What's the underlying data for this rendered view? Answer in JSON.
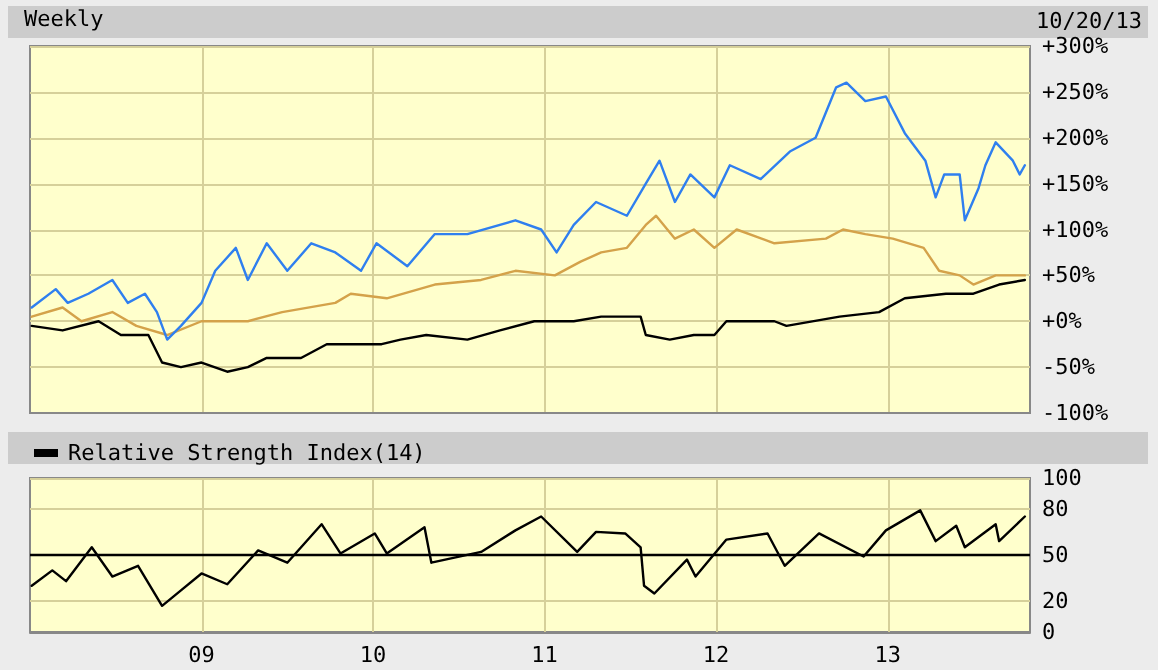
{
  "chart_data": [
    {
      "type": "line",
      "title": "Weekly",
      "annotations": [
        "10/20/13"
      ],
      "xlim": [
        2008.0,
        2013.83
      ],
      "xticks": [
        2009,
        2010,
        2011,
        2012,
        2013
      ],
      "ylim": [
        -100,
        300
      ],
      "yticks": [
        {
          "value": -100,
          "label": "-100%"
        },
        {
          "value": -50,
          "label": "-50%"
        },
        {
          "value": 0,
          "label": "+0%"
        },
        {
          "value": 50,
          "label": "+50%"
        },
        {
          "value": 100,
          "label": "+100%"
        },
        {
          "value": 150,
          "label": "+150%"
        },
        {
          "value": 200,
          "label": "+200%"
        },
        {
          "value": 250,
          "label": "+250%"
        },
        {
          "value": 300,
          "label": "+300%"
        }
      ],
      "tick_labels": "y",
      "grid": true,
      "legend": false,
      "marker": "none",
      "line_style": "solid",
      "series": [
        {
          "color": "#2f7fef",
          "x": [
            2008.01,
            2008.15,
            2008.22,
            2008.34,
            2008.48,
            2008.57,
            2008.67,
            2008.74,
            2008.8,
            2008.88,
            2009.0,
            2009.08,
            2009.2,
            2009.27,
            2009.38,
            2009.5,
            2009.64,
            2009.78,
            2009.93,
            2010.02,
            2010.2,
            2010.36,
            2010.55,
            2010.83,
            2010.98,
            2011.07,
            2011.17,
            2011.3,
            2011.48,
            2011.59,
            2011.67,
            2011.76,
            2011.85,
            2011.99,
            2012.08,
            2012.26,
            2012.43,
            2012.58,
            2012.7,
            2012.76,
            2012.87,
            2012.99,
            2013.1,
            2013.22,
            2013.28,
            2013.33,
            2013.42,
            2013.45,
            2013.53,
            2013.57,
            2013.63,
            2013.73,
            2013.77,
            2013.8
          ],
          "values": [
            15,
            35,
            20,
            30,
            45,
            20,
            30,
            10,
            -20,
            -5,
            20,
            55,
            80,
            45,
            85,
            55,
            85,
            75,
            55,
            85,
            60,
            95,
            95,
            110,
            100,
            75,
            105,
            130,
            115,
            150,
            175,
            130,
            160,
            135,
            170,
            155,
            185,
            200,
            255,
            260,
            240,
            245,
            205,
            175,
            135,
            160,
            160,
            110,
            145,
            170,
            195,
            175,
            160,
            170
          ]
        },
        {
          "color": "#d4a24a",
          "x": [
            2008.01,
            2008.19,
            2008.3,
            2008.48,
            2008.62,
            2008.8,
            2009.0,
            2009.27,
            2009.47,
            2009.78,
            2009.87,
            2010.08,
            2010.36,
            2010.63,
            2010.83,
            2011.06,
            2011.21,
            2011.33,
            2011.48,
            2011.59,
            2011.65,
            2011.76,
            2011.87,
            2011.99,
            2012.12,
            2012.34,
            2012.64,
            2012.74,
            2012.87,
            2013.03,
            2013.21,
            2013.3,
            2013.42,
            2013.5,
            2013.63,
            2013.8
          ],
          "values": [
            5,
            15,
            0,
            10,
            -5,
            -15,
            0,
            0,
            10,
            20,
            30,
            25,
            40,
            45,
            55,
            50,
            65,
            75,
            80,
            105,
            115,
            90,
            100,
            80,
            100,
            85,
            90,
            100,
            95,
            90,
            80,
            55,
            50,
            40,
            50,
            50
          ]
        },
        {
          "color": "#000000",
          "x": [
            2008.01,
            2008.19,
            2008.4,
            2008.53,
            2008.69,
            2008.77,
            2008.88,
            2009.0,
            2009.15,
            2009.27,
            2009.38,
            2009.58,
            2009.73,
            2009.93,
            2010.05,
            2010.16,
            2010.31,
            2010.55,
            2010.74,
            2010.94,
            2011.17,
            2011.33,
            2011.48,
            2011.56,
            2011.59,
            2011.73,
            2011.87,
            2011.99,
            2012.06,
            2012.34,
            2012.41,
            2012.72,
            2012.95,
            2013.1,
            2013.34,
            2013.5,
            2013.65,
            2013.8
          ],
          "values": [
            -5,
            -10,
            0,
            -15,
            -15,
            -45,
            -50,
            -45,
            -55,
            -50,
            -40,
            -40,
            -25,
            -25,
            -25,
            -20,
            -15,
            -20,
            -10,
            0,
            0,
            5,
            5,
            5,
            -15,
            -20,
            -15,
            -15,
            0,
            0,
            -5,
            5,
            10,
            25,
            30,
            30,
            40,
            45
          ]
        }
      ]
    },
    {
      "type": "line",
      "xlim": [
        2008.0,
        2013.83
      ],
      "xticks": [
        {
          "value": 2009,
          "label": "09"
        },
        {
          "value": 2010,
          "label": "10"
        },
        {
          "value": 2011,
          "label": "11"
        },
        {
          "value": 2012,
          "label": "12"
        },
        {
          "value": 2013,
          "label": "13"
        }
      ],
      "ylim": [
        0,
        100
      ],
      "yticks": [
        0,
        20,
        50,
        80,
        100
      ],
      "grid": true,
      "legend": "top left",
      "marker": "none",
      "line_style": "solid",
      "ref_lines": [
        {
          "axis": "y",
          "value": 50,
          "color": "#000000"
        }
      ],
      "series": [
        {
          "name": "Relative Strength Index(14)",
          "color": "#000000",
          "x": [
            2008.01,
            2008.13,
            2008.21,
            2008.36,
            2008.48,
            2008.63,
            2008.77,
            2008.88,
            2009.0,
            2009.15,
            2009.33,
            2009.5,
            2009.7,
            2009.81,
            2010.01,
            2010.08,
            2010.3,
            2010.34,
            2010.63,
            2010.83,
            2010.98,
            2011.19,
            2011.3,
            2011.47,
            2011.56,
            2011.58,
            2011.64,
            2011.83,
            2011.88,
            2012.06,
            2012.3,
            2012.4,
            2012.6,
            2012.86,
            2012.99,
            2013.19,
            2013.28,
            2013.4,
            2013.45,
            2013.63,
            2013.65,
            2013.8
          ],
          "values": [
            30,
            40,
            33,
            55,
            36,
            43,
            17,
            27,
            38,
            31,
            53,
            45,
            70,
            51,
            64,
            51,
            68,
            45,
            52,
            66,
            75,
            52,
            65,
            64,
            55,
            30,
            25,
            47,
            36,
            60,
            64,
            43,
            64,
            49,
            66,
            79,
            59,
            69,
            55,
            70,
            59,
            75
          ]
        }
      ]
    }
  ]
}
